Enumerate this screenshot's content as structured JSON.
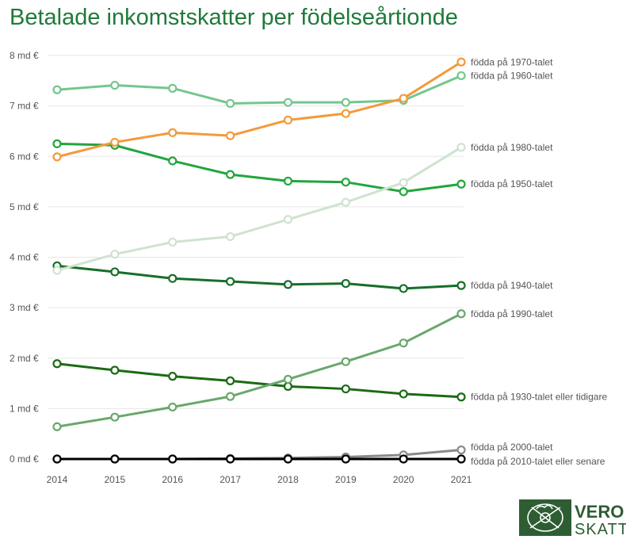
{
  "title": "Betalade inkomstskatter per födelseårtionde",
  "logo": {
    "line1": "VERO",
    "line2": "SKATT",
    "brand_color": "#2e5d34"
  },
  "chart_data": {
    "type": "line",
    "title": "Betalade inkomstskatter per födelseårtionde",
    "xlabel": "",
    "ylabel": "",
    "x": [
      "2014",
      "2015",
      "2016",
      "2017",
      "2018",
      "2019",
      "2020",
      "2021"
    ],
    "yticks": [
      {
        "value": 0,
        "label": "0 md €"
      },
      {
        "value": 1,
        "label": "1 md €"
      },
      {
        "value": 2,
        "label": "2 md €"
      },
      {
        "value": 3,
        "label": "3 md €"
      },
      {
        "value": 4,
        "label": "4 md €"
      },
      {
        "value": 5,
        "label": "5 md €"
      },
      {
        "value": 6,
        "label": "6 md €"
      },
      {
        "value": 7,
        "label": "7 md €"
      },
      {
        "value": 8,
        "label": "8 md €"
      }
    ],
    "ylim": [
      0,
      8
    ],
    "grid": true,
    "series": [
      {
        "name": "födda på 1930-talet eller tidigare",
        "color": "#1a6b12",
        "values": [
          1.89,
          1.76,
          1.64,
          1.55,
          1.44,
          1.39,
          1.29,
          1.23
        ]
      },
      {
        "name": "födda på 1940-talet",
        "color": "#176e2a",
        "values": [
          3.83,
          3.71,
          3.58,
          3.52,
          3.46,
          3.48,
          3.38,
          3.44
        ]
      },
      {
        "name": "födda på 1950-talet",
        "color": "#21a63c",
        "values": [
          6.25,
          6.22,
          5.91,
          5.64,
          5.51,
          5.49,
          5.3,
          5.45
        ]
      },
      {
        "name": "födda på 1960-talet",
        "color": "#74c68f",
        "values": [
          7.32,
          7.41,
          7.35,
          7.05,
          7.07,
          7.07,
          7.11,
          7.6
        ]
      },
      {
        "name": "födda på 1970-talet",
        "color": "#f39a3b",
        "values": [
          5.99,
          6.28,
          6.47,
          6.41,
          6.72,
          6.85,
          7.15,
          7.87
        ]
      },
      {
        "name": "födda på 1980-talet",
        "color": "#cfe3cf",
        "values": [
          3.74,
          4.06,
          4.3,
          4.41,
          4.75,
          5.09,
          5.48,
          6.18
        ]
      },
      {
        "name": "födda på 1990-talet",
        "color": "#6aa76b",
        "values": [
          0.64,
          0.83,
          1.03,
          1.24,
          1.58,
          1.93,
          2.3,
          2.88
        ]
      },
      {
        "name": "födda på 2000-talet",
        "color": "#8a8a8a",
        "values": [
          0.0,
          0.0,
          0.0,
          0.01,
          0.02,
          0.04,
          0.08,
          0.18
        ]
      },
      {
        "name": "födda på 2010-talet eller senare",
        "color": "#000000",
        "values": [
          0.0,
          0.0,
          0.0,
          0.0,
          0.0,
          0.0,
          0.0,
          0.0
        ]
      }
    ]
  }
}
